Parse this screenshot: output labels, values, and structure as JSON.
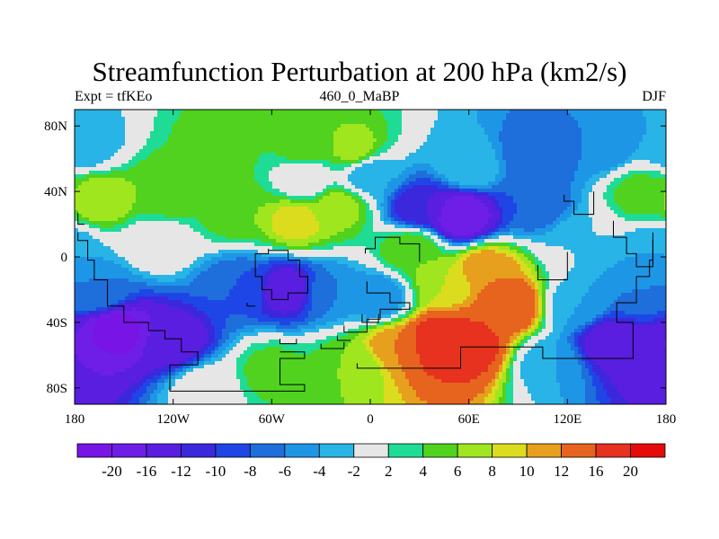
{
  "title": "Streamfunction Perturbation at 200 hPa (km2/s)",
  "subtitle_left": "Expt = tfKEo",
  "subtitle_center": "460_0_MaBP",
  "subtitle_right": "DJF",
  "map": {
    "lon_range": [
      -180,
      180
    ],
    "lat_range": [
      -90,
      90
    ],
    "lat_ticks": [
      {
        "value": 80,
        "label": "80N"
      },
      {
        "value": 40,
        "label": "40N"
      },
      {
        "value": 0,
        "label": "0"
      },
      {
        "value": -40,
        "label": "40S"
      },
      {
        "value": -80,
        "label": "80S"
      }
    ],
    "lon_ticks": [
      {
        "value": -180,
        "label": "180"
      },
      {
        "value": -120,
        "label": "120W"
      },
      {
        "value": -60,
        "label": "60W"
      },
      {
        "value": 0,
        "label": "0"
      },
      {
        "value": 60,
        "label": "60E"
      },
      {
        "value": 120,
        "label": "120E"
      },
      {
        "value": 180,
        "label": "180"
      }
    ],
    "background_color": "#e6e6e6",
    "coastline_color": "#000000"
  },
  "colorbar": {
    "levels": [
      -20,
      -16,
      -12,
      -10,
      -8,
      -6,
      -4,
      -2,
      2,
      4,
      6,
      8,
      10,
      12,
      16,
      20
    ],
    "labels": [
      "-20",
      "-16",
      "-12",
      "-10",
      "-8",
      "-6",
      "-4",
      "-2",
      "2",
      "4",
      "6",
      "8",
      "10",
      "12",
      "16",
      "20"
    ],
    "colors": [
      "#7814e6",
      "#6e1ee6",
      "#5a1ee1",
      "#3c28dc",
      "#1e46e6",
      "#1e6edc",
      "#1e96e6",
      "#28b4e6",
      "#e6e6e6",
      "#1edc96",
      "#50d21e",
      "#a0e61e",
      "#dcdc1e",
      "#e6a01e",
      "#e6641e",
      "#e6321e",
      "#e60a0a"
    ]
  },
  "fields": [
    {
      "lon": -165,
      "lat": 35,
      "value": 8
    },
    {
      "lon": -125,
      "lat": 40,
      "value": 6
    },
    {
      "lon": -80,
      "lat": 28,
      "value": 6
    },
    {
      "lon": -45,
      "lat": 22,
      "value": 9
    },
    {
      "lon": -20,
      "lat": 30,
      "value": 7
    },
    {
      "lon": -90,
      "lat": 68,
      "value": 5
    },
    {
      "lon": -40,
      "lat": 65,
      "value": 5
    },
    {
      "lon": -10,
      "lat": 66,
      "value": 7
    },
    {
      "lon": 60,
      "lat": 55,
      "value": -2
    },
    {
      "lon": 55,
      "lat": 25,
      "value": -20
    },
    {
      "lon": 30,
      "lat": 30,
      "value": -12
    },
    {
      "lon": 100,
      "lat": 33,
      "value": -8
    },
    {
      "lon": 100,
      "lat": 62,
      "value": -8
    },
    {
      "lon": 140,
      "lat": 68,
      "value": -6
    },
    {
      "lon": 175,
      "lat": 5,
      "value": -4
    },
    {
      "lon": 165,
      "lat": 38,
      "value": 5
    },
    {
      "lon": -175,
      "lat": 68,
      "value": -4
    },
    {
      "lon": -50,
      "lat": -20,
      "value": -14
    },
    {
      "lon": -80,
      "lat": -18,
      "value": -8
    },
    {
      "lon": -25,
      "lat": -22,
      "value": -6
    },
    {
      "lon": 5,
      "lat": -25,
      "value": -6
    },
    {
      "lon": -155,
      "lat": -45,
      "value": -22
    },
    {
      "lon": -120,
      "lat": -52,
      "value": -14
    },
    {
      "lon": -165,
      "lat": -22,
      "value": -6
    },
    {
      "lon": 40,
      "lat": -52,
      "value": 20
    },
    {
      "lon": 60,
      "lat": -55,
      "value": 18
    },
    {
      "lon": 85,
      "lat": -30,
      "value": 16
    },
    {
      "lon": 70,
      "lat": -8,
      "value": 12
    },
    {
      "lon": 45,
      "lat": -15,
      "value": 8
    },
    {
      "lon": 15,
      "lat": -55,
      "value": 12
    },
    {
      "lon": -10,
      "lat": -66,
      "value": 6
    },
    {
      "lon": -60,
      "lat": -70,
      "value": 5
    },
    {
      "lon": 25,
      "lat": 5,
      "value": 6
    },
    {
      "lon": 145,
      "lat": -52,
      "value": -14
    },
    {
      "lon": 175,
      "lat": -62,
      "value": -16
    },
    {
      "lon": 125,
      "lat": -30,
      "value": -4
    },
    {
      "lon": 165,
      "lat": -20,
      "value": -6
    },
    {
      "lon": 110,
      "lat": -65,
      "value": -4
    },
    {
      "lon": 0,
      "lat": 50,
      "value": -4
    },
    {
      "lon": -40,
      "lat": 48,
      "value": -1
    },
    {
      "lon": 130,
      "lat": 10,
      "value": -2
    },
    {
      "lon": -130,
      "lat": 8,
      "value": 0
    },
    {
      "lon": -100,
      "lat": -80,
      "value": 0
    }
  ]
}
